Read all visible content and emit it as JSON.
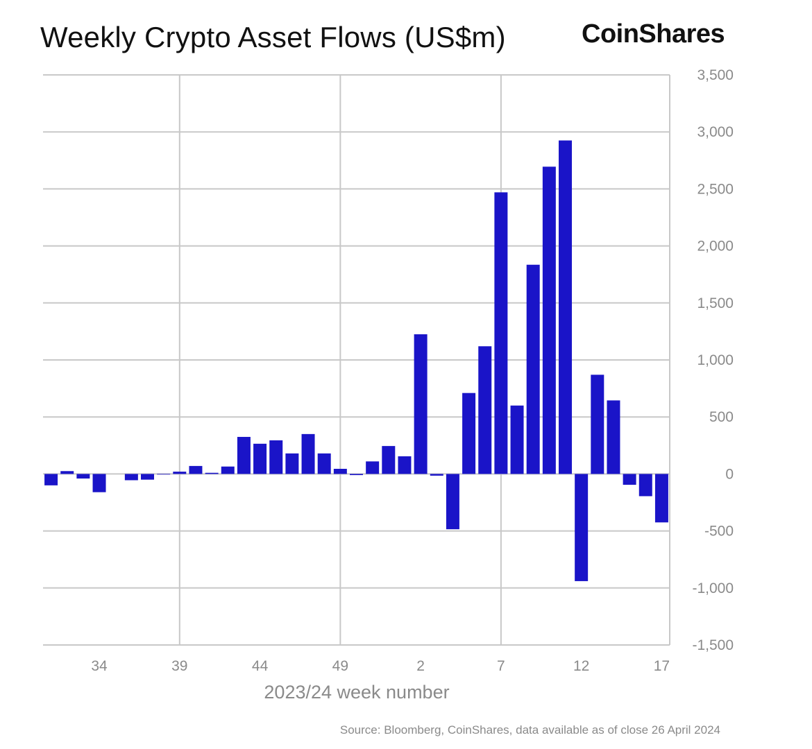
{
  "title": "Weekly Crypto Asset Flows (US$m)",
  "brand": "CoinShares",
  "source": "Source: Bloomberg, CoinShares, data available as of close 26 April 2024",
  "colors": {
    "bar": "#1a14c8",
    "grid": "#c8c8c8",
    "tick_text": "#8a8a8a"
  },
  "chart_data": {
    "type": "bar",
    "title": "Weekly Crypto Asset Flows (US$m)",
    "xlabel": "2023/24 week number",
    "ylabel": "",
    "ylim": [
      -1500,
      3500
    ],
    "yticks": [
      3500,
      3000,
      2500,
      2000,
      1500,
      1000,
      500,
      0,
      -500,
      -1000,
      -1500
    ],
    "ytick_labels": [
      "3,500",
      "3,000",
      "2,500",
      "2,000",
      "1,500",
      "1,000",
      "500",
      "0",
      "-500",
      "-1,000",
      "-1,500"
    ],
    "xtick_labels": [
      "34",
      "39",
      "44",
      "49",
      "2",
      "7",
      "12",
      "17"
    ],
    "grid": true,
    "y_axis_side": "right",
    "categories": [
      "31",
      "32",
      "33",
      "34",
      "35",
      "36",
      "37",
      "38",
      "39",
      "40",
      "41",
      "42",
      "43",
      "44",
      "45",
      "46",
      "47",
      "48",
      "49",
      "50",
      "51",
      "52",
      "1",
      "2",
      "3",
      "4",
      "5",
      "6",
      "7",
      "8",
      "9",
      "10",
      "11",
      "12",
      "13",
      "14",
      "15",
      "16",
      "17"
    ],
    "values": [
      -100,
      25,
      -40,
      -160,
      0,
      -55,
      -50,
      -5,
      20,
      70,
      10,
      65,
      325,
      265,
      295,
      180,
      350,
      180,
      45,
      -10,
      110,
      245,
      155,
      1225,
      -15,
      -485,
      710,
      1120,
      2470,
      600,
      1835,
      2695,
      2925,
      -940,
      870,
      645,
      -95,
      -195,
      -425
    ]
  }
}
